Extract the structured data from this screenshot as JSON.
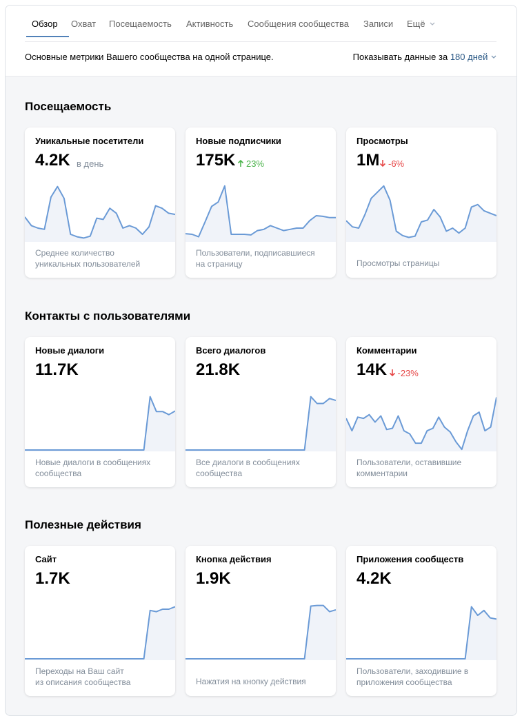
{
  "tabs": [
    "Обзор",
    "Охват",
    "Посещаемость",
    "Активность",
    "Сообщения сообщества",
    "Записи",
    "Ещё"
  ],
  "description": "Основные метрики Вашего сообщества на одной странице.",
  "period": {
    "label": "Показывать данные за",
    "value": "180 дней"
  },
  "sections": [
    {
      "title": "Посещаемость",
      "cards": [
        {
          "title": "Уникальные посетители",
          "value": "4.2K",
          "unit": "в день",
          "caption": [
            "Среднее количество",
            "уникальных пользователей"
          ],
          "sparkline": [
            38,
            24,
            20,
            18,
            70,
            87,
            68,
            10,
            6,
            4,
            7,
            36,
            34,
            52,
            44,
            20,
            24,
            20,
            10,
            22,
            56,
            52,
            44,
            42
          ]
        },
        {
          "title": "Новые подписчики",
          "value": "175K",
          "delta": "23%",
          "trend": "up",
          "caption": [
            "Пользователи, подписавшиеся",
            "на страницу"
          ],
          "sparkline": [
            11,
            10,
            6,
            30,
            55,
            62,
            88,
            10,
            10,
            10,
            9,
            16,
            18,
            24,
            20,
            16,
            18,
            20,
            20,
            32,
            40,
            39,
            37,
            37
          ]
        },
        {
          "title": "Просмотры",
          "value": "1M",
          "delta": "-6%",
          "trend": "down",
          "caption": [
            "Просмотры страницы"
          ],
          "sparkline": [
            32,
            22,
            20,
            42,
            68,
            78,
            88,
            65,
            15,
            8,
            5,
            7,
            30,
            33,
            50,
            38,
            15,
            20,
            12,
            20,
            54,
            58,
            48,
            44,
            40
          ]
        }
      ]
    },
    {
      "title": "Контакты с пользователями",
      "cards": [
        {
          "title": "Новые диалоги",
          "value": "11.7K",
          "caption": [
            "Новые диалоги в сообщениях",
            "сообщества"
          ],
          "sparkline": [
            0,
            0,
            0,
            0,
            0,
            0,
            0,
            0,
            0,
            0,
            0,
            0,
            0,
            0,
            0,
            0,
            0,
            0,
            0,
            0,
            86,
            62,
            62,
            57,
            63
          ]
        },
        {
          "title": "Всего диалогов",
          "value": "21.8K",
          "caption": [
            "Все диалоги в сообщениях",
            "сообщества"
          ],
          "sparkline": [
            0,
            0,
            0,
            0,
            0,
            0,
            0,
            0,
            0,
            0,
            0,
            0,
            0,
            0,
            0,
            0,
            0,
            0,
            0,
            0,
            86,
            75,
            75,
            83,
            80
          ]
        },
        {
          "title": "Комментарии",
          "value": "14K",
          "delta": "-23%",
          "trend": "down",
          "caption": [
            "Пользователи, оставившие",
            "комментарии"
          ],
          "sparkline": [
            51,
            31,
            53,
            51,
            57,
            45,
            55,
            33,
            35,
            55,
            31,
            26,
            11,
            11,
            31,
            35,
            53,
            37,
            29,
            13,
            1,
            31,
            55,
            61,
            31,
            37,
            85
          ]
        }
      ]
    },
    {
      "title": "Полезные действия",
      "cards": [
        {
          "title": "Сайт",
          "value": "1.7K",
          "caption": [
            "Переходы на Ваш сайт",
            "из описания сообщества"
          ],
          "sparkline": [
            0,
            0,
            0,
            0,
            0,
            0,
            0,
            0,
            0,
            0,
            0,
            0,
            0,
            0,
            0,
            0,
            0,
            0,
            0,
            0,
            78,
            76,
            80,
            80,
            84
          ]
        },
        {
          "title": "Кнопка действия",
          "value": "1.9K",
          "caption": [
            "Нажатия на кнопку действия"
          ],
          "sparkline": [
            0,
            0,
            0,
            0,
            0,
            0,
            0,
            0,
            0,
            0,
            0,
            0,
            0,
            0,
            0,
            0,
            0,
            0,
            0,
            0,
            85,
            86,
            86,
            76,
            79
          ]
        },
        {
          "title": "Приложения сообществ",
          "value": "4.2K",
          "caption": [
            "Пользователи, заходившие в",
            "приложения сообщества"
          ],
          "sparkline": [
            0,
            0,
            0,
            0,
            0,
            0,
            0,
            0,
            0,
            0,
            0,
            0,
            0,
            0,
            0,
            0,
            0,
            0,
            0,
            0,
            84,
            70,
            78,
            66,
            64
          ]
        }
      ]
    }
  ]
}
